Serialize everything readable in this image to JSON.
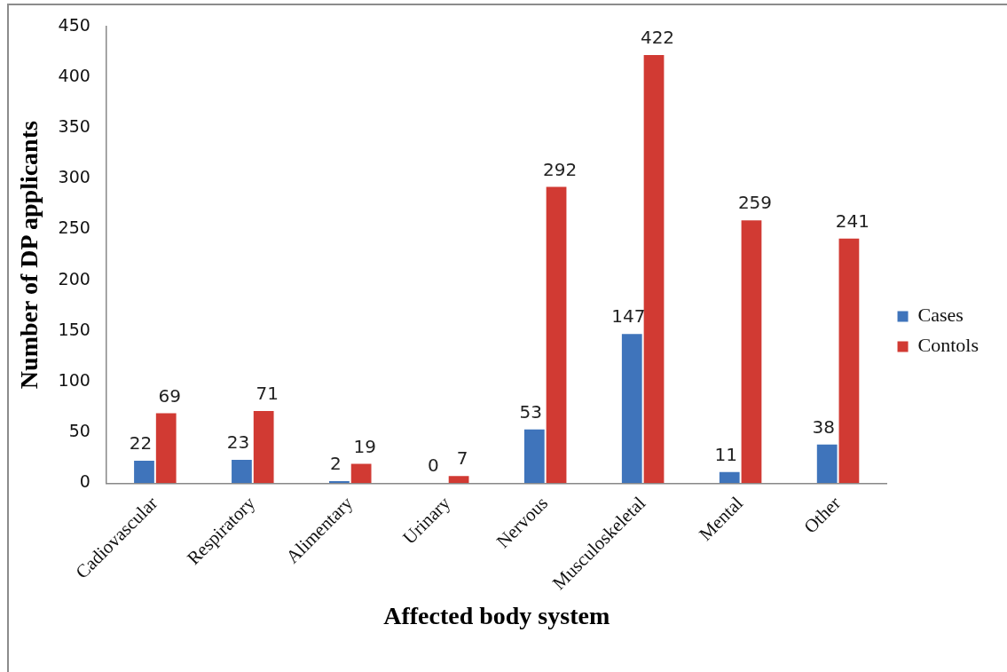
{
  "chart_data": {
    "type": "bar",
    "xlabel": "Affected body system",
    "ylabel": "Number of DP applicants",
    "categories": [
      "Cadiovascular",
      "Respiratory",
      "Alimentary",
      "Urinary",
      "Nervous",
      "Musculoskeletal",
      "Mental",
      "Other"
    ],
    "series": [
      {
        "name": "Cases",
        "color": "#3f74bb",
        "values": [
          22,
          23,
          2,
          0,
          53,
          147,
          11,
          38
        ]
      },
      {
        "name": "Contols",
        "color": "#d13a33",
        "values": [
          69,
          71,
          19,
          7,
          292,
          422,
          259,
          241
        ]
      }
    ],
    "ylim": [
      0,
      450
    ],
    "yticks": [
      0,
      50,
      100,
      150,
      200,
      250,
      300,
      350,
      400,
      450
    ],
    "grid": false,
    "legend": "right",
    "data_labels": true
  }
}
